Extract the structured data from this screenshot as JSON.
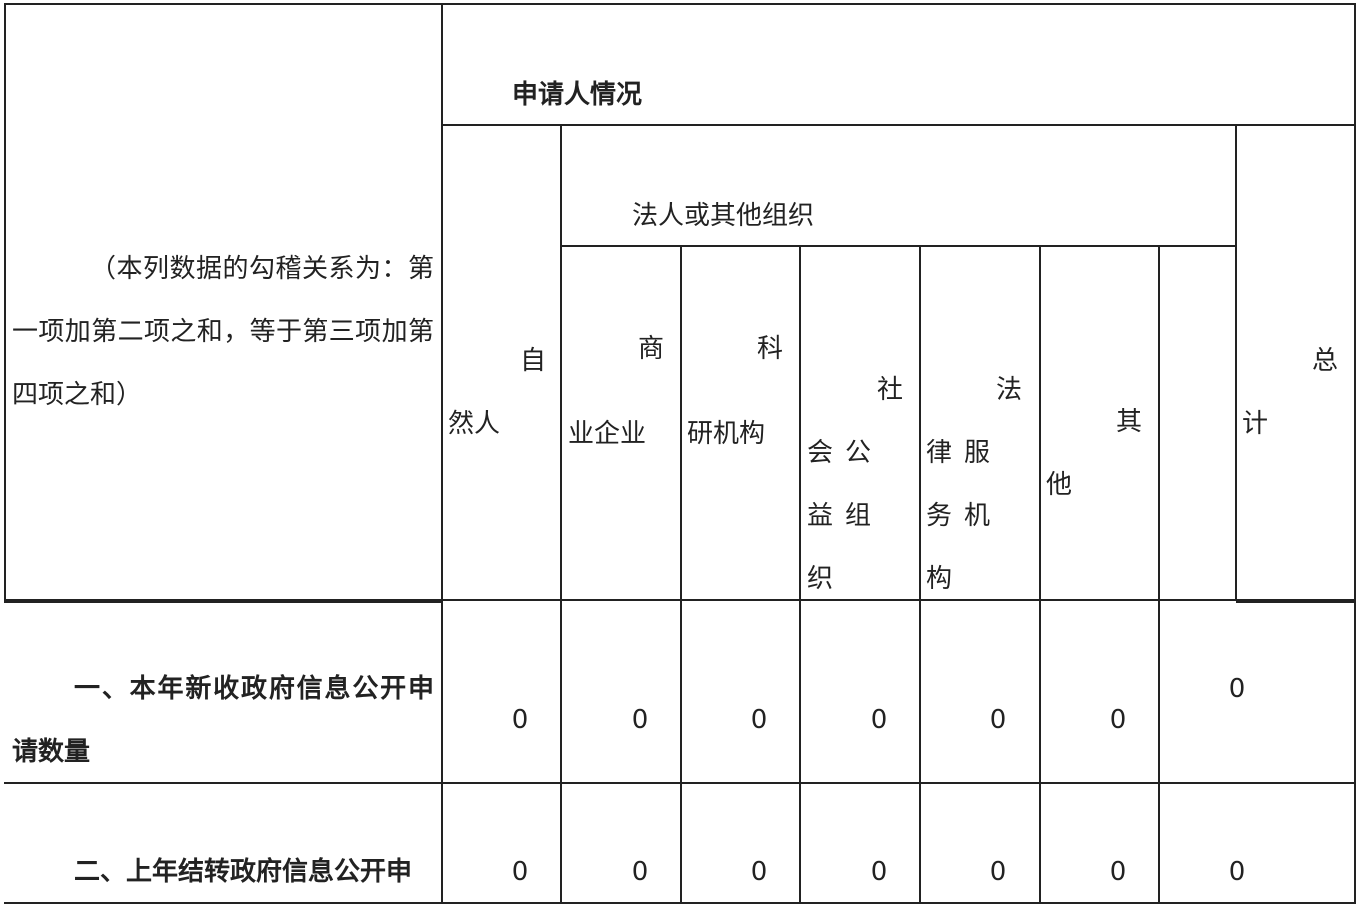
{
  "header": {
    "applicant_situation": "申请人情况",
    "natural_person": "自然人",
    "legal_or_other_org": "法人或其他组织",
    "total": "总计",
    "row_header_note": "（本列数据的勾稽关系为：第一项加第二项之和，等于第三项加第四项之和）",
    "sub_columns": [
      "商业企业",
      "科研机构",
      "社会公益组织",
      "法律服务机构",
      "其他",
      ""
    ]
  },
  "rows": [
    {
      "label": "一、本年新收政府信息公开申请数量",
      "values": [
        "0",
        "0",
        "0",
        "0",
        "0",
        "0",
        "0"
      ]
    },
    {
      "label": "二、上年结转政府信息公开申",
      "values": [
        "0",
        "0",
        "0",
        "0",
        "0",
        "0",
        "0"
      ]
    }
  ]
}
